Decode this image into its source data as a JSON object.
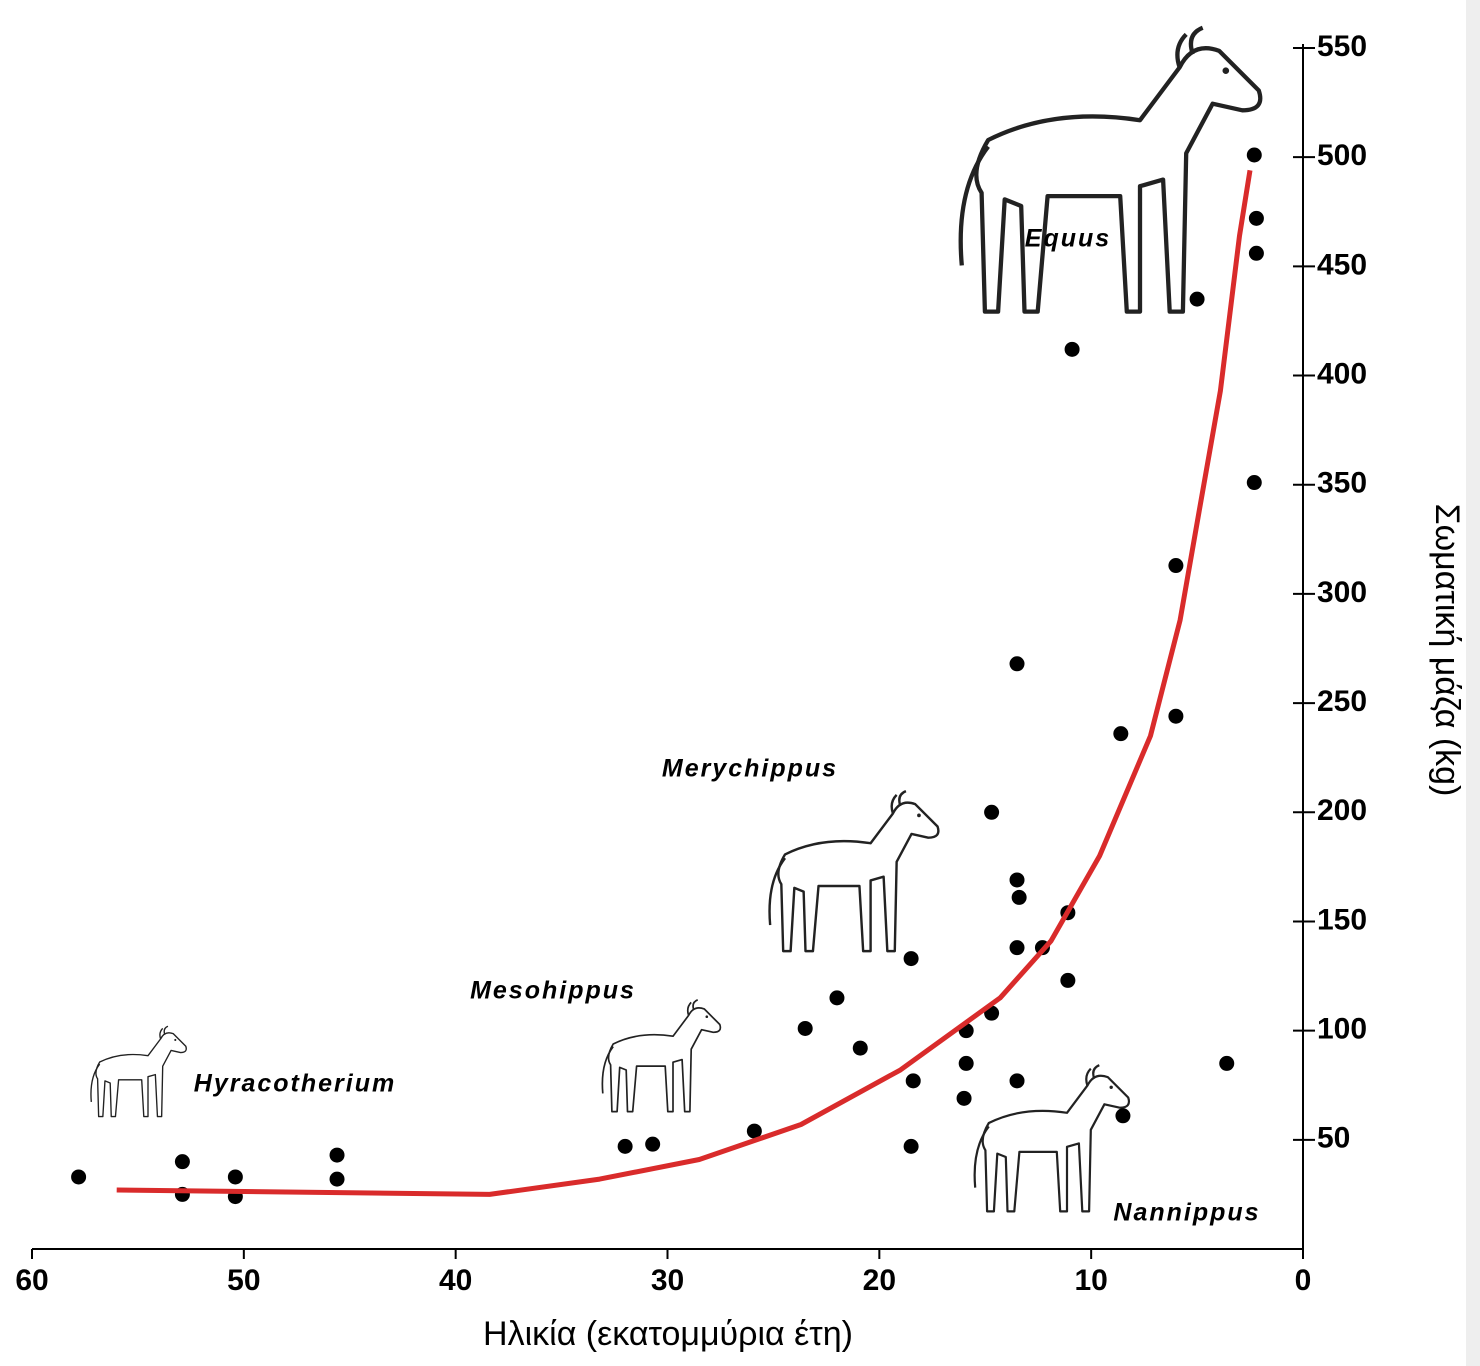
{
  "chart_data": {
    "type": "scatter",
    "x_label": "Ηλικία (εκατομμύρια έτη)",
    "y_label": "Σωματική μάζα (kg)",
    "xlim": [
      60,
      0
    ],
    "xticks": [
      60,
      50,
      40,
      30,
      20,
      10,
      0
    ],
    "ylim": [
      0,
      550
    ],
    "yticks": [
      50,
      100,
      150,
      200,
      250,
      300,
      350,
      400,
      450,
      500,
      550
    ],
    "annotations": [
      "Equus",
      "Merychippus",
      "Mesohippus",
      "Hyracotherium",
      "Nannippus"
    ],
    "series": [
      {
        "type": "scatter",
        "color": "#000000",
        "x": [
          57.8,
          52.9,
          52.9,
          50.4,
          50.4,
          45.6,
          45.6,
          32.0,
          30.7,
          25.9,
          23.5,
          22.0,
          20.9,
          18.5,
          18.4,
          18.5,
          16.0,
          15.9,
          15.9,
          14.7,
          14.7,
          13.5,
          13.5,
          13.4,
          13.5,
          13.5,
          12.3,
          11.1,
          11.1,
          10.9,
          8.6,
          8.5,
          6.0,
          6.0,
          5.0,
          3.6,
          2.3,
          2.2,
          2.2,
          2.3
        ],
        "values": [
          33,
          40,
          25,
          33,
          24,
          43,
          32,
          47,
          48,
          54,
          101,
          115,
          92,
          133,
          77,
          47,
          69,
          100,
          85,
          108,
          200,
          268,
          169,
          161,
          138,
          77,
          138,
          154,
          123,
          412,
          236,
          61,
          313,
          244,
          435,
          85,
          501,
          472,
          456,
          351
        ]
      },
      {
        "type": "line",
        "color": "#d92b2b",
        "x": [
          56.0,
          38.4,
          33.2,
          28.5,
          23.7,
          19.0,
          14.3,
          11.9,
          9.6,
          7.2,
          5.8,
          4.9,
          3.9,
          3.0,
          2.5
        ],
        "values": [
          27,
          25,
          32,
          41,
          57,
          82,
          115,
          141,
          180,
          235,
          288,
          338,
          393,
          464,
          494
        ]
      }
    ]
  }
}
